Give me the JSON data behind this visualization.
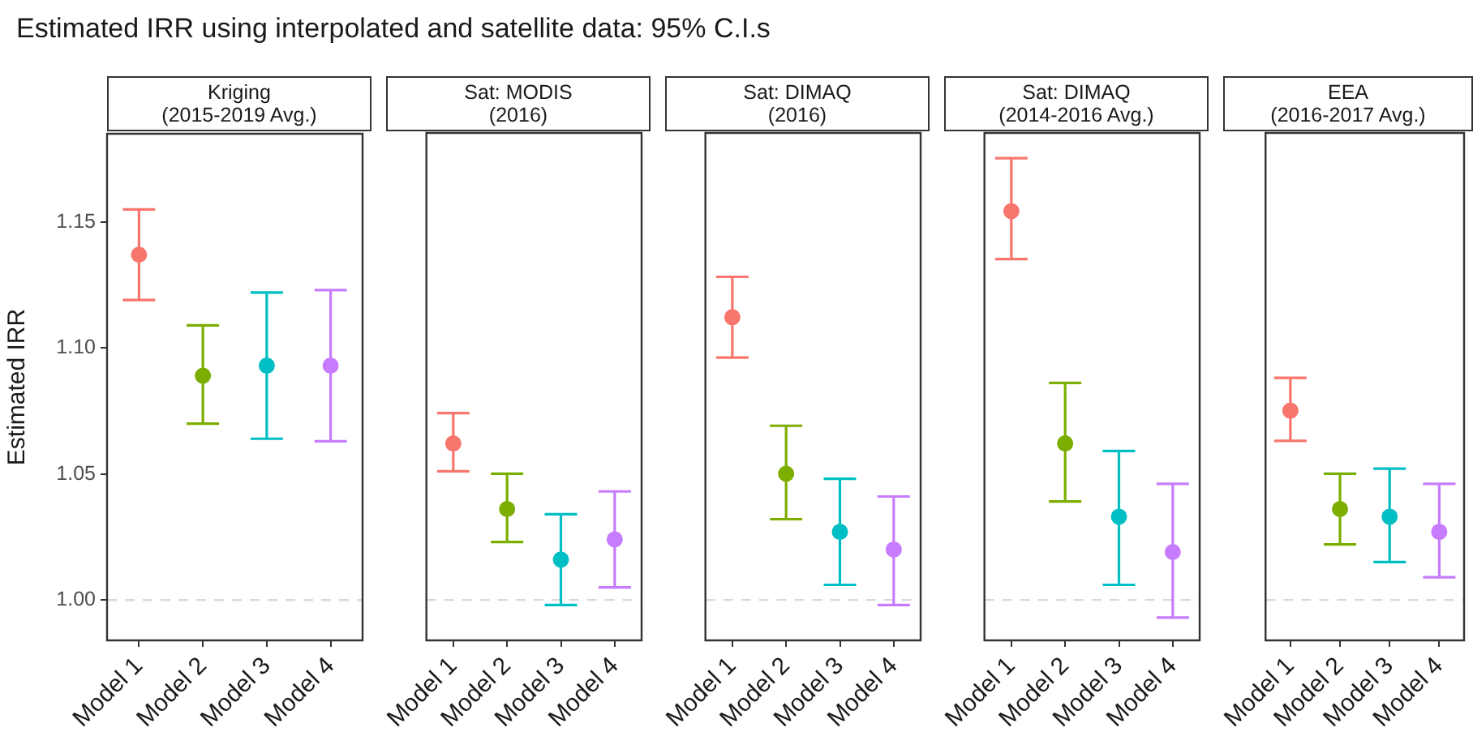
{
  "chart_data": [
    {
      "type": "scatter",
      "title": "Estimated IRR using interpolated and satellite data: 95% C.I.s",
      "subtitle": "Kriging\n(2015-2019 Avg.)",
      "ylabel": "Estimated IRR",
      "categories": [
        "Model 1",
        "Model 2",
        "Model 3",
        "Model 4"
      ],
      "values": [
        1.137,
        1.089,
        1.093,
        1.093
      ],
      "errors": [
        [
          1.119,
          1.155
        ],
        [
          1.07,
          1.109
        ],
        [
          1.064,
          1.122
        ],
        [
          1.063,
          1.123
        ]
      ],
      "colors": [
        "#f8766d",
        "#7cae00",
        "#00bfc4",
        "#c77cff"
      ],
      "ylim": [
        0.984,
        1.185
      ],
      "yticks": [
        {
          "value": 1.0,
          "label": "1.00"
        },
        1.05,
        {
          "value": 1.1,
          "label": "1.10"
        },
        1.15
      ],
      "marker": "circle",
      "grid": false,
      "ref_lines": [
        {
          "axis": "y",
          "value": 1.0,
          "color": "#d9d9d9",
          "line_style": "dashed"
        }
      ]
    },
    {
      "type": "scatter",
      "subtitle": "Sat: MODIS\n(2016)",
      "categories": [
        "Model 1",
        "Model 2",
        "Model 3",
        "Model 4"
      ],
      "values": [
        1.062,
        1.036,
        1.016,
        1.024
      ],
      "errors": [
        [
          1.051,
          1.074
        ],
        [
          1.023,
          1.05
        ],
        [
          0.998,
          1.034
        ],
        [
          1.005,
          1.043
        ]
      ],
      "colors": [
        "#f8766d",
        "#7cae00",
        "#00bfc4",
        "#c77cff"
      ],
      "ylim": [
        0.984,
        1.185
      ],
      "yticks": [
        1.0,
        1.05,
        1.1,
        1.15
      ],
      "tick_labels": "x",
      "marker": "circle",
      "grid": false,
      "ref_lines": [
        {
          "axis": "y",
          "value": 1.0,
          "color": "#d9d9d9",
          "line_style": "dashed"
        }
      ]
    },
    {
      "type": "scatter",
      "subtitle": "Sat: DIMAQ\n(2016)",
      "categories": [
        "Model 1",
        "Model 2",
        "Model 3",
        "Model 4"
      ],
      "values": [
        1.112,
        1.05,
        1.027,
        1.02
      ],
      "errors": [
        [
          1.096,
          1.128
        ],
        [
          1.032,
          1.069
        ],
        [
          1.006,
          1.048
        ],
        [
          0.998,
          1.041
        ]
      ],
      "colors": [
        "#f8766d",
        "#7cae00",
        "#00bfc4",
        "#c77cff"
      ],
      "ylim": [
        0.984,
        1.185
      ],
      "yticks": [
        1.0,
        1.05,
        1.1,
        1.15
      ],
      "tick_labels": "x",
      "marker": "circle",
      "grid": false,
      "ref_lines": [
        {
          "axis": "y",
          "value": 1.0,
          "color": "#d9d9d9",
          "line_style": "dashed"
        }
      ]
    },
    {
      "type": "scatter",
      "subtitle": "Sat: DIMAQ\n(2014-2016 Avg.)",
      "categories": [
        "Model 1",
        "Model 2",
        "Model 3",
        "Model 4"
      ],
      "values": [
        1.154,
        1.062,
        1.033,
        1.019
      ],
      "errors": [
        [
          1.135,
          1.175
        ],
        [
          1.039,
          1.086
        ],
        [
          1.006,
          1.059
        ],
        [
          0.993,
          1.046
        ]
      ],
      "colors": [
        "#f8766d",
        "#7cae00",
        "#00bfc4",
        "#c77cff"
      ],
      "ylim": [
        0.984,
        1.185
      ],
      "yticks": [
        1.0,
        1.05,
        1.1,
        1.15
      ],
      "tick_labels": "x",
      "marker": "circle",
      "grid": false,
      "ref_lines": [
        {
          "axis": "y",
          "value": 1.0,
          "color": "#d9d9d9",
          "line_style": "dashed"
        }
      ]
    },
    {
      "type": "scatter",
      "subtitle": "EEA\n(2016-2017 Avg.)",
      "categories": [
        "Model 1",
        "Model 2",
        "Model 3",
        "Model 4"
      ],
      "values": [
        1.075,
        1.036,
        1.033,
        1.027
      ],
      "errors": [
        [
          1.063,
          1.088
        ],
        [
          1.022,
          1.05
        ],
        [
          1.015,
          1.052
        ],
        [
          1.009,
          1.046
        ]
      ],
      "colors": [
        "#f8766d",
        "#7cae00",
        "#00bfc4",
        "#c77cff"
      ],
      "ylim": [
        0.984,
        1.185
      ],
      "yticks": [
        1.0,
        1.05,
        1.1,
        1.15
      ],
      "tick_labels": "x",
      "marker": "circle",
      "grid": false,
      "ref_lines": [
        {
          "axis": "y",
          "value": 1.0,
          "color": "#d9d9d9",
          "line_style": "dashed"
        }
      ]
    }
  ]
}
